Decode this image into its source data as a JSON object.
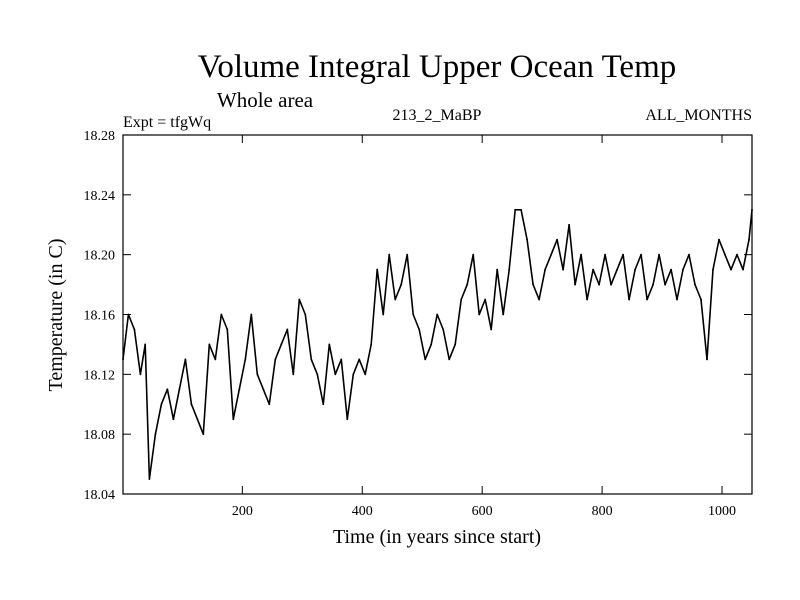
{
  "chart_data": {
    "type": "line",
    "title": "Volume Integral Upper Ocean Temp",
    "subtitle": "Whole area",
    "expt_label": "Expt = tfgWq",
    "run_label": "213_2_MaBP",
    "period_label": "ALL_MONTHS",
    "xlabel": "Time (in years since start)",
    "ylabel": "Temperature (in C)",
    "xlim": [
      1,
      1050
    ],
    "ylim": [
      18.04,
      18.28
    ],
    "x_ticks": [
      200,
      400,
      600,
      800,
      1000
    ],
    "x_tick_labels": [
      "200",
      "400",
      "600",
      "800",
      "1000"
    ],
    "y_ticks": [
      18.04,
      18.08,
      18.12,
      18.16,
      18.2,
      18.24,
      18.28
    ],
    "y_tick_labels": [
      "18.04",
      "18.08",
      "18.12",
      "18.16",
      "18.20",
      "18.24",
      "18.28"
    ],
    "grid": false,
    "series": [
      {
        "name": "Volume integral upper ocean temperature",
        "color": "#000000",
        "x": [
          1,
          10,
          20,
          30,
          38,
          45,
          55,
          65,
          75,
          85,
          95,
          105,
          115,
          125,
          135,
          145,
          155,
          165,
          175,
          185,
          195,
          205,
          215,
          225,
          235,
          245,
          255,
          265,
          275,
          285,
          295,
          305,
          315,
          325,
          335,
          345,
          355,
          365,
          375,
          385,
          395,
          405,
          415,
          425,
          435,
          445,
          455,
          465,
          475,
          485,
          495,
          505,
          515,
          525,
          535,
          545,
          555,
          565,
          575,
          585,
          595,
          605,
          615,
          625,
          635,
          645,
          655,
          665,
          675,
          685,
          695,
          705,
          715,
          725,
          735,
          745,
          755,
          765,
          775,
          785,
          795,
          805,
          815,
          825,
          835,
          845,
          855,
          865,
          875,
          885,
          895,
          905,
          915,
          925,
          935,
          945,
          955,
          965,
          975,
          985,
          995,
          1005,
          1015,
          1025,
          1035,
          1045,
          1050
        ],
        "values": [
          18.13,
          18.16,
          18.15,
          18.12,
          18.14,
          18.05,
          18.08,
          18.1,
          18.11,
          18.09,
          18.11,
          18.13,
          18.1,
          18.09,
          18.08,
          18.14,
          18.13,
          18.16,
          18.15,
          18.09,
          18.11,
          18.13,
          18.16,
          18.12,
          18.11,
          18.1,
          18.13,
          18.14,
          18.15,
          18.12,
          18.17,
          18.16,
          18.13,
          18.12,
          18.1,
          18.14,
          18.12,
          18.13,
          18.09,
          18.12,
          18.13,
          18.12,
          18.14,
          18.19,
          18.16,
          18.2,
          18.17,
          18.18,
          18.2,
          18.16,
          18.15,
          18.13,
          18.14,
          18.16,
          18.15,
          18.13,
          18.14,
          18.17,
          18.18,
          18.2,
          18.16,
          18.17,
          18.15,
          18.19,
          18.16,
          18.19,
          18.23,
          18.23,
          18.21,
          18.18,
          18.17,
          18.19,
          18.2,
          18.21,
          18.19,
          18.22,
          18.18,
          18.2,
          18.17,
          18.19,
          18.18,
          18.2,
          18.18,
          18.19,
          18.2,
          18.17,
          18.19,
          18.2,
          18.17,
          18.18,
          18.2,
          18.18,
          18.19,
          18.17,
          18.19,
          18.2,
          18.18,
          18.17,
          18.13,
          18.19,
          18.21,
          18.2,
          18.19,
          18.2,
          18.19,
          18.21,
          18.23
        ]
      }
    ]
  }
}
